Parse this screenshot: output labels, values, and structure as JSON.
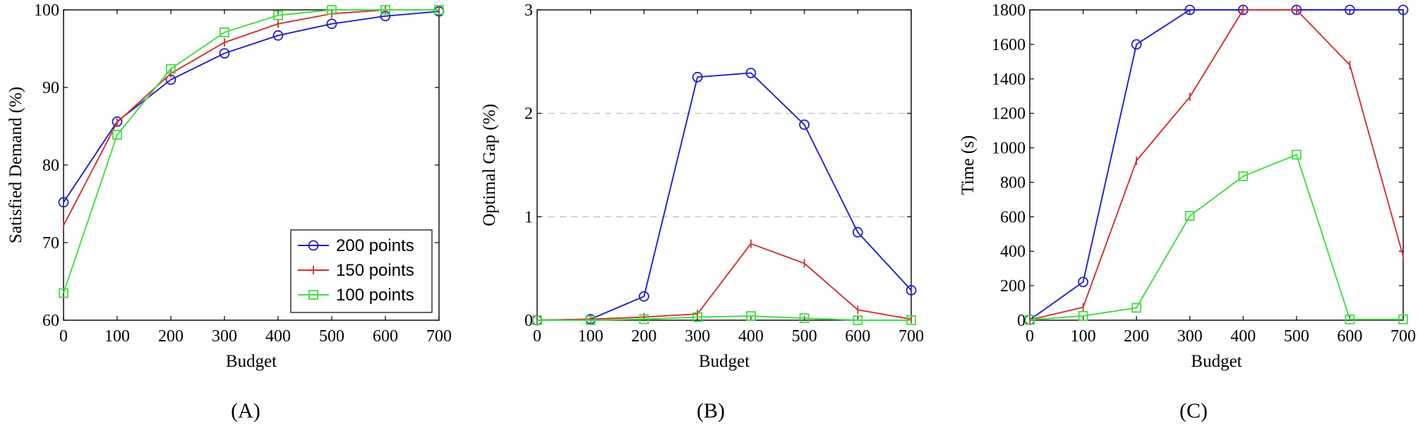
{
  "colors": {
    "series_200": "#2020c8",
    "series_150": "#d03030",
    "series_100": "#40dc40"
  },
  "chart_data": [
    {
      "type": "line",
      "panel_label": "(A)",
      "xlabel": "Budget",
      "ylabel": "Satisfied Demand (%)",
      "x": [
        0,
        100,
        200,
        300,
        400,
        500,
        600,
        700
      ],
      "xlim": [
        0,
        700
      ],
      "ylim": [
        60,
        100
      ],
      "xticks": [
        "0",
        "100",
        "200",
        "300",
        "400",
        "500",
        "600",
        "700"
      ],
      "yticks": [
        "60",
        "70",
        "80",
        "90",
        "100"
      ],
      "xtick_values": [
        0,
        100,
        200,
        300,
        400,
        500,
        600,
        700
      ],
      "ytick_values": [
        60,
        70,
        80,
        90,
        100
      ],
      "grid": false,
      "legend": {
        "placement": "bottom-right",
        "entries": [
          "200 points",
          "150 points",
          "100 points"
        ]
      },
      "series": [
        {
          "name": "200 points",
          "marker": "circle",
          "color_key": "series_200",
          "values": [
            75.2,
            85.6,
            91.0,
            94.4,
            96.7,
            98.2,
            99.2,
            99.8
          ]
        },
        {
          "name": "150 points",
          "marker": "bar",
          "color_key": "series_150",
          "values": [
            72.2,
            85.5,
            91.8,
            95.8,
            98.2,
            99.5,
            100,
            100
          ]
        },
        {
          "name": "100 points",
          "marker": "square",
          "color_key": "series_100",
          "values": [
            63.5,
            83.9,
            92.4,
            97.1,
            99.3,
            100,
            100,
            100
          ]
        }
      ]
    },
    {
      "type": "line",
      "panel_label": "(B)",
      "xlabel": "Budget",
      "ylabel": "Optimal Gap (%)",
      "x": [
        0,
        100,
        200,
        300,
        400,
        500,
        600,
        700
      ],
      "xlim": [
        0,
        700
      ],
      "ylim": [
        0,
        3
      ],
      "xticks": [
        "0",
        "100",
        "200",
        "300",
        "400",
        "500",
        "600",
        "700"
      ],
      "yticks": [
        "0",
        "1",
        "2",
        "3"
      ],
      "xtick_values": [
        0,
        100,
        200,
        300,
        400,
        500,
        600,
        700
      ],
      "ytick_values": [
        0,
        1,
        2,
        3
      ],
      "grid": true,
      "grid_values": [
        1,
        2
      ],
      "series": [
        {
          "name": "200 points",
          "marker": "circle",
          "color_key": "series_200",
          "values": [
            0,
            0.01,
            0.23,
            2.35,
            2.39,
            1.89,
            0.85,
            0.29
          ]
        },
        {
          "name": "150 points",
          "marker": "bar",
          "color_key": "series_150",
          "values": [
            0,
            0.01,
            0.03,
            0.06,
            0.74,
            0.55,
            0.1,
            0.01
          ]
        },
        {
          "name": "100 points",
          "marker": "square",
          "color_key": "series_100",
          "values": [
            0,
            0,
            0.01,
            0.03,
            0.04,
            0.02,
            0,
            0
          ]
        }
      ]
    },
    {
      "type": "line",
      "panel_label": "(C)",
      "xlabel": "Budget",
      "ylabel": "Time (s)",
      "x": [
        0,
        100,
        200,
        300,
        400,
        500,
        600,
        700
      ],
      "xlim": [
        0,
        700
      ],
      "ylim": [
        0,
        1800
      ],
      "xticks": [
        "0",
        "100",
        "200",
        "300",
        "400",
        "500",
        "600",
        "700"
      ],
      "yticks": [
        "0",
        "200",
        "400",
        "600",
        "800",
        "1000",
        "1200",
        "1400",
        "1600",
        "1800"
      ],
      "xtick_values": [
        0,
        100,
        200,
        300,
        400,
        500,
        600,
        700
      ],
      "ytick_values": [
        0,
        200,
        400,
        600,
        800,
        1000,
        1200,
        1400,
        1600,
        1800
      ],
      "grid": false,
      "series": [
        {
          "name": "200 points",
          "marker": "circle",
          "color_key": "series_200",
          "values": [
            2,
            222,
            1600,
            1800,
            1800,
            1800,
            1800,
            1800
          ]
        },
        {
          "name": "150 points",
          "marker": "bar",
          "color_key": "series_150",
          "values": [
            2,
            75,
            925,
            1295,
            1800,
            1800,
            1480,
            370
          ]
        },
        {
          "name": "100 points",
          "marker": "square",
          "color_key": "series_100",
          "values": [
            2,
            25,
            72,
            605,
            835,
            960,
            5,
            5
          ]
        }
      ]
    }
  ]
}
